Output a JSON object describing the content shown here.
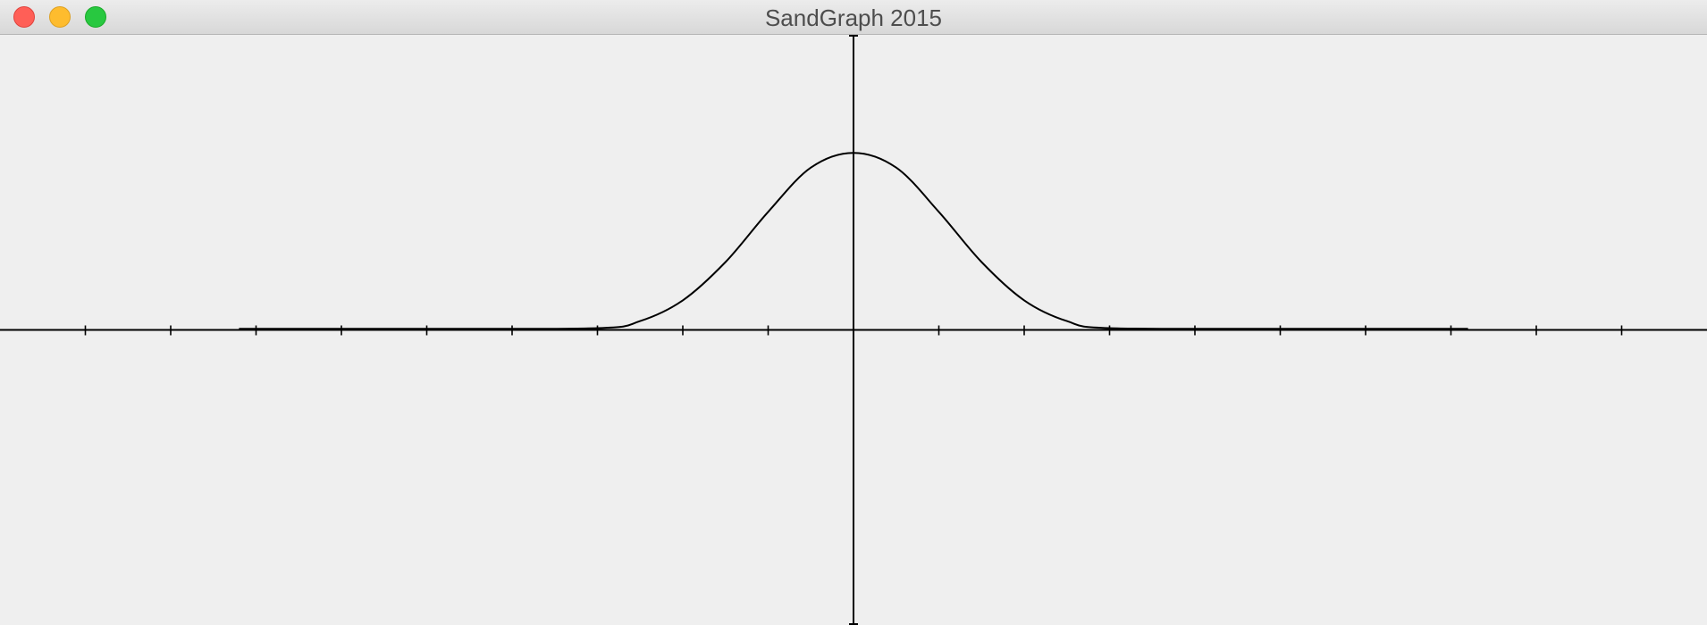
{
  "window": {
    "title": "SandGraph 2015",
    "controls": {
      "close_color": "#ff5f57",
      "minimize_color": "#febc2e",
      "zoom_color": "#28c840"
    }
  },
  "chart_data": {
    "type": "line",
    "title": "",
    "xlabel": "",
    "ylabel": "",
    "xlim": [
      -10,
      10
    ],
    "ylim": [
      -1.0,
      1.0
    ],
    "x_tick_step": 1,
    "grid": false,
    "legend": "none",
    "line_color": "#000000",
    "series": [
      {
        "x": [
          -7.2,
          -5.0,
          -3.0,
          -2.5,
          -2.0,
          -1.5,
          -1.0,
          -0.5,
          0,
          0.5,
          1.0,
          1.5,
          2.0,
          2.5,
          3.0,
          5.0,
          7.2
        ],
        "y": [
          0.004,
          0.004,
          0.006,
          0.03,
          0.1,
          0.23,
          0.4,
          0.55,
          0.6,
          0.55,
          0.4,
          0.23,
          0.1,
          0.03,
          0.006,
          0.004,
          0.004
        ]
      }
    ]
  }
}
